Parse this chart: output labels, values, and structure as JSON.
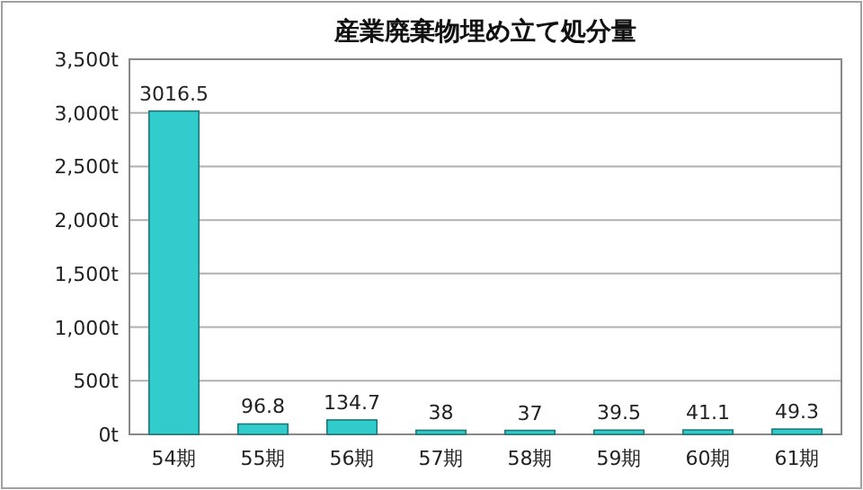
{
  "chart_data": {
    "type": "bar",
    "title": "産業廃棄物埋め立て処分量",
    "categories": [
      "54期",
      "55期",
      "56期",
      "57期",
      "58期",
      "59期",
      "60期",
      "61期"
    ],
    "values": [
      3016.5,
      96.8,
      134.7,
      38,
      37,
      39.5,
      41.1,
      49.3
    ],
    "color": "#33cccc",
    "ylim": [
      0,
      3500
    ],
    "yticks": [
      {
        "value": 0,
        "label": "0t"
      },
      {
        "value": 500,
        "label": "500t"
      },
      {
        "value": 1000,
        "label": "1,000t"
      },
      {
        "value": 1500,
        "label": "1,500t"
      },
      {
        "value": 2000,
        "label": "2,000t"
      },
      {
        "value": 2500,
        "label": "2,500t"
      },
      {
        "value": 3000,
        "label": "3,000t"
      },
      {
        "value": 3500,
        "label": "3,500t"
      }
    ],
    "grid": "y",
    "data_labels": true
  }
}
